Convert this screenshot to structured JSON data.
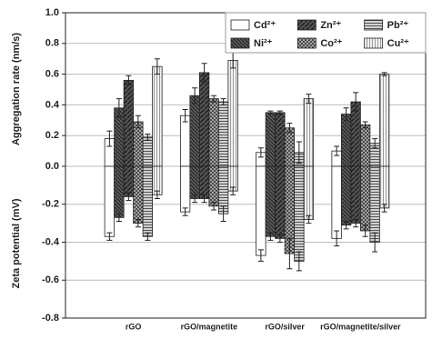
{
  "chart_data": [
    {
      "type": "bar",
      "y_label": "Aggregation rate (nm/s)",
      "ylim": [
        0,
        1.0
      ],
      "yticks": [
        {
          "value": 0,
          "label": "0.0"
        },
        0.2,
        0.4,
        0.6,
        0.8,
        {
          "value": 1.0,
          "label": "1.0"
        }
      ],
      "grid": true,
      "legend": "top-right",
      "series": [
        {
          "name": "Cd²⁺",
          "color": "#ffffff",
          "pattern": "none",
          "values": [
            0.18,
            0.33,
            0.09,
            0.1
          ],
          "errors": [
            0.05,
            0.04,
            0.03,
            0.03
          ]
        },
        {
          "name": "Ni²⁺",
          "color": "#333333",
          "pattern": "grid",
          "values": [
            0.38,
            0.46,
            0.35,
            0.34
          ],
          "errors": [
            0.06,
            0.05,
            0.01,
            0.04
          ]
        },
        {
          "name": "Zn²⁺",
          "color": "#444444",
          "pattern": "diag",
          "values": [
            0.56,
            0.61,
            0.35,
            0.42
          ],
          "errors": [
            0.03,
            0.06,
            0.01,
            0.06
          ]
        },
        {
          "name": "Co²⁺",
          "color": "#888888",
          "pattern": "cross",
          "values": [
            0.29,
            0.44,
            0.25,
            0.27
          ],
          "errors": [
            0.04,
            0.02,
            0.03,
            0.02
          ]
        },
        {
          "name": "Pb²⁺",
          "color": "#999999",
          "pattern": "horizontal",
          "values": [
            0.19,
            0.42,
            0.09,
            0.15
          ],
          "errors": [
            0.02,
            0.02,
            0.07,
            0.03
          ]
        },
        {
          "name": "Cu²⁺",
          "color": "#cccccc",
          "pattern": "vertical",
          "values": [
            0.65,
            0.69,
            0.44,
            0.6
          ],
          "errors": [
            0.05,
            0.05,
            0.03,
            0.01
          ]
        }
      ]
    },
    {
      "type": "bar",
      "y_label": "Zeta potential (mV)",
      "categories": [
        "rGO",
        "rGO/magnetite",
        "rGO/silver",
        "rGO/magnetite/silver"
      ],
      "ylim": [
        -0.8,
        0
      ],
      "yticks": [
        -0.8,
        -0.6,
        -0.4,
        -0.2
      ],
      "grid": true,
      "series": [
        {
          "color": "#ffffff",
          "pattern": "none",
          "values": [
            -0.37,
            -0.24,
            -0.47,
            -0.38
          ],
          "errors": [
            0.02,
            0.02,
            0.03,
            0.04
          ]
        },
        {
          "color": "#333333",
          "pattern": "grid",
          "values": [
            -0.27,
            -0.17,
            -0.37,
            -0.31
          ],
          "errors": [
            0.02,
            0.02,
            0.02,
            0.02
          ]
        },
        {
          "color": "#444444",
          "pattern": "diag",
          "values": [
            -0.16,
            -0.17,
            -0.38,
            -0.3
          ],
          "errors": [
            0.02,
            0.02,
            0.02,
            0.02
          ]
        },
        {
          "color": "#888888",
          "pattern": "cross",
          "values": [
            -0.3,
            -0.21,
            -0.46,
            -0.34
          ],
          "errors": [
            0.02,
            0.02,
            0.08,
            0.03
          ]
        },
        {
          "color": "#999999",
          "pattern": "horizontal",
          "values": [
            -0.37,
            -0.25,
            -0.5,
            -0.4
          ],
          "errors": [
            0.02,
            0.04,
            0.05,
            0.05
          ]
        },
        {
          "color": "#cccccc",
          "pattern": "vertical",
          "values": [
            -0.15,
            -0.13,
            -0.28,
            -0.22
          ],
          "errors": [
            0.02,
            0.02,
            0.02,
            0.02
          ]
        }
      ]
    }
  ]
}
